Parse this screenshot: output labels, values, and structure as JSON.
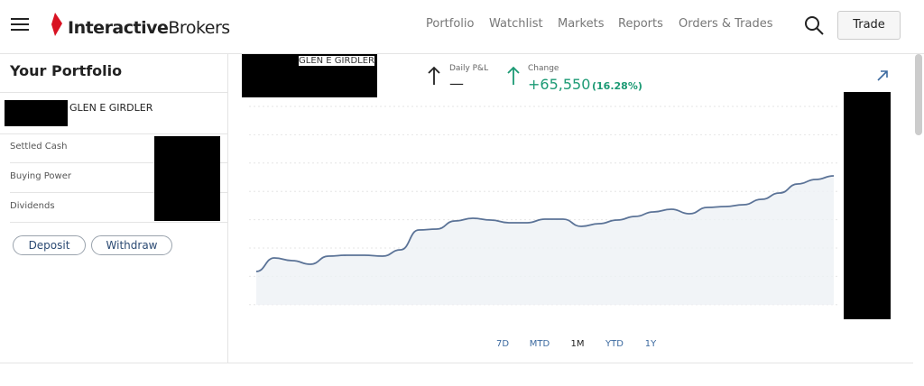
{
  "header": {
    "logo_bold": "Interactive",
    "logo_light": "Brokers",
    "nav": [
      "Portfolio",
      "Watchlist",
      "Markets",
      "Reports",
      "Orders & Trades"
    ],
    "trade": "Trade"
  },
  "portfolio": {
    "title": "Your Portfolio",
    "account_name": "GLEN E GIRDLER",
    "rows": [
      "Settled Cash",
      "Buying Power",
      "Dividends"
    ],
    "buttons": [
      "Deposit",
      "Withdraw"
    ]
  },
  "chart_header": {
    "account_name": "GLEN E GIRDLER",
    "daily_pnl_label": "Daily P&L",
    "daily_pnl_value": "—",
    "change_label": "Change",
    "change_value": "+65,550",
    "change_percent": "(16.28%)"
  },
  "chart_data": {
    "type": "line",
    "color": "#5b7397",
    "values": [
      39,
      54,
      51,
      47,
      56,
      57,
      57,
      56,
      63,
      85,
      86,
      95,
      98,
      96,
      93,
      93,
      97,
      97,
      89,
      92,
      96,
      100,
      105,
      108,
      103,
      110,
      111,
      113,
      119,
      126,
      136,
      141,
      145
    ],
    "ranges": [
      "7D",
      "MTD",
      "1M",
      "YTD",
      "1Y"
    ]
  }
}
